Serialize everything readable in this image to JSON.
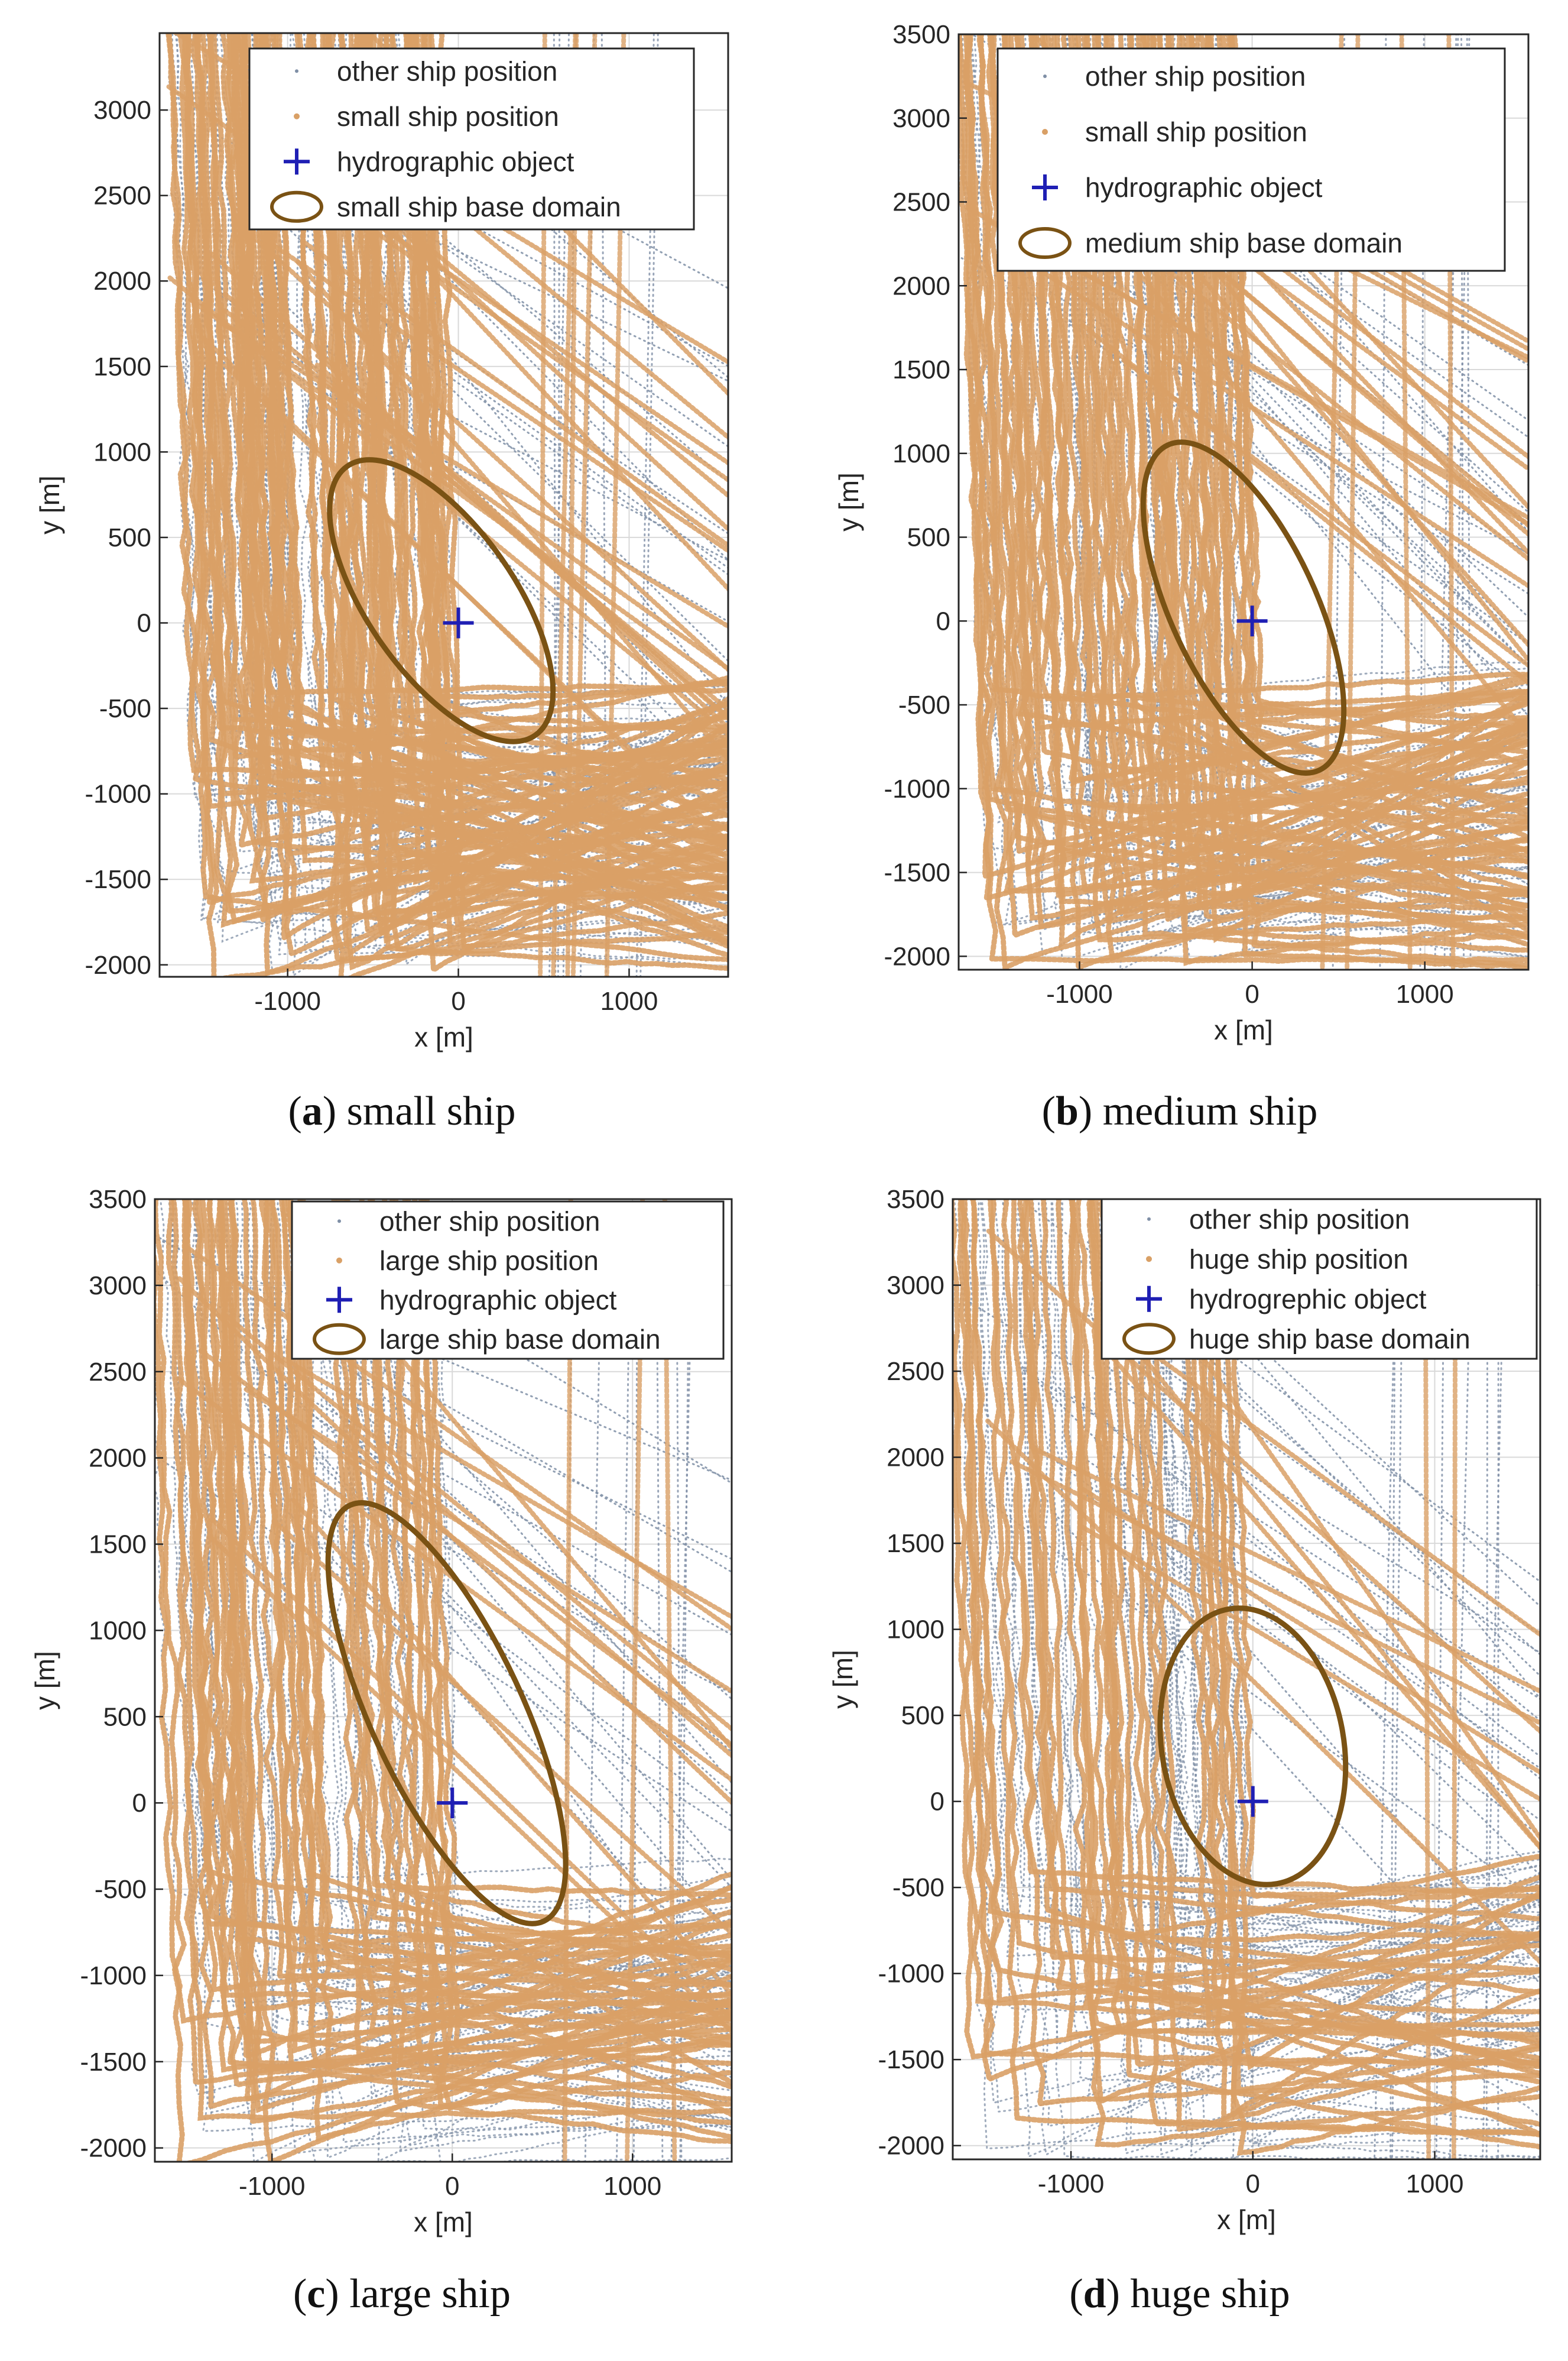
{
  "chart_data": [
    {
      "type": "scatter",
      "caption_letter": "a",
      "caption_text": "small ship",
      "xlabel": "x [m]",
      "ylabel": "y [m]",
      "xlim": [
        -1750,
        1580
      ],
      "ylim": [
        -2070,
        3450
      ],
      "xticks": [
        -1000,
        0,
        1000
      ],
      "yticks": [
        -2000,
        -1500,
        -1000,
        -500,
        0,
        500,
        1000,
        1500,
        2000,
        2500,
        3000
      ],
      "grid": true,
      "legend_position": "top-right",
      "legend": [
        "other ship position",
        "small ship position",
        "hydrographic object",
        "small ship base domain"
      ],
      "series": [
        {
          "name": "other ship position",
          "color": "#7f8fa6",
          "marker": "dot"
        },
        {
          "name": "small ship position",
          "color": "#d9a066",
          "marker": "dot"
        },
        {
          "name": "hydrographic object",
          "color": "#1f1fb4",
          "marker": "plus",
          "x": [
            0
          ],
          "y": [
            0
          ]
        },
        {
          "name": "small ship base domain",
          "color": "#7a5214",
          "marker": "ellipse",
          "center": [
            -100,
            130
          ],
          "semi_major": 960,
          "semi_minor": 430,
          "rotation_deg": -35
        }
      ]
    },
    {
      "type": "scatter",
      "caption_letter": "b",
      "caption_text": "medium ship",
      "xlabel": "x [m]",
      "ylabel": "y [m]",
      "xlim": [
        -1700,
        1600
      ],
      "ylim": [
        -2080,
        3500
      ],
      "xticks": [
        -1000,
        0,
        1000
      ],
      "yticks": [
        -2000,
        -1500,
        -1000,
        -500,
        0,
        500,
        1000,
        1500,
        2000,
        2500,
        3000,
        3500
      ],
      "grid": true,
      "legend_position": "top-right",
      "legend": [
        "other ship position",
        "small ship position",
        "hydrographic object",
        "medium ship base domain"
      ],
      "series": [
        {
          "name": "other ship position",
          "color": "#7f8fa6",
          "marker": "dot"
        },
        {
          "name": "small ship position",
          "color": "#d9a066",
          "marker": "dot"
        },
        {
          "name": "hydrographic object",
          "color": "#1f1fb4",
          "marker": "plus",
          "x": [
            0
          ],
          "y": [
            0
          ]
        },
        {
          "name": "medium ship base domain",
          "color": "#7a5214",
          "marker": "ellipse",
          "center": [
            -50,
            80
          ],
          "semi_major": 1070,
          "semi_minor": 420,
          "rotation_deg": -25
        }
      ]
    },
    {
      "type": "scatter",
      "caption_letter": "c",
      "caption_text": "large ship",
      "xlabel": "x [m]",
      "ylabel": "y [m]",
      "xlim": [
        -1650,
        1550
      ],
      "ylim": [
        -2080,
        3500
      ],
      "xticks": [
        -1000,
        0,
        1000
      ],
      "yticks": [
        -2000,
        -1500,
        -1000,
        -500,
        0,
        500,
        1000,
        1500,
        2000,
        2500,
        3000,
        3500
      ],
      "grid": true,
      "legend_position": "top-right",
      "legend": [
        "other ship position",
        "large ship position",
        "hydrographic object",
        "large ship base domain"
      ],
      "series": [
        {
          "name": "other ship position",
          "color": "#7f8fa6",
          "marker": "dot"
        },
        {
          "name": "large ship position",
          "color": "#d9a066",
          "marker": "dot"
        },
        {
          "name": "hydrographic object",
          "color": "#1f1fb4",
          "marker": "plus",
          "x": [
            0
          ],
          "y": [
            0
          ]
        },
        {
          "name": "large ship base domain",
          "color": "#7a5214",
          "marker": "ellipse",
          "center": [
            -30,
            520
          ],
          "semi_major": 1330,
          "semi_minor": 420,
          "rotation_deg": -25
        }
      ]
    },
    {
      "type": "scatter",
      "caption_letter": "d",
      "caption_text": "huge ship",
      "xlabel": "x [m]",
      "ylabel": "y [m]",
      "xlim": [
        -1650,
        1580
      ],
      "ylim": [
        -2080,
        3500
      ],
      "xticks": [
        -1000,
        0,
        1000
      ],
      "yticks": [
        -2000,
        -1500,
        -1000,
        -500,
        0,
        500,
        1000,
        1500,
        2000,
        2500,
        3000,
        3500
      ],
      "grid": true,
      "legend_position": "top-right",
      "legend": [
        "other ship position",
        "huge ship position",
        "hydrogrephic object",
        "huge ship base domain"
      ],
      "series": [
        {
          "name": "other ship position",
          "color": "#7f8fa6",
          "marker": "dot"
        },
        {
          "name": "huge ship position",
          "color": "#d9a066",
          "marker": "dot"
        },
        {
          "name": "hydrogrephic object",
          "color": "#1f1fb4",
          "marker": "plus",
          "x": [
            0
          ],
          "y": [
            0
          ]
        },
        {
          "name": "huge ship base domain",
          "color": "#7a5214",
          "marker": "ellipse",
          "center": [
            0,
            320
          ],
          "semi_major": 810,
          "semi_minor": 500,
          "rotation_deg": -10
        }
      ]
    }
  ]
}
